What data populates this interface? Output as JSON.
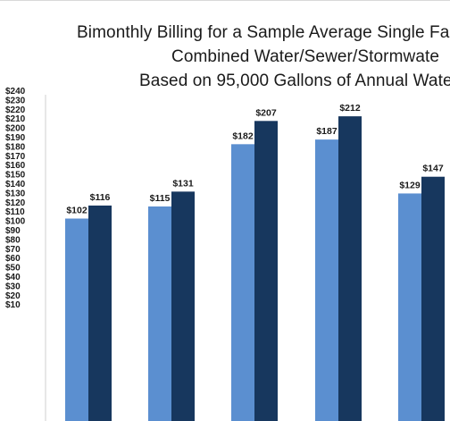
{
  "chart_data": {
    "type": "bar",
    "title_lines": [
      "Bimonthly Billing for a Sample Average Single Far",
      "Combined Water/Sewer/Stormwate",
      "Based on 95,000 Gallons of Annual Wate"
    ],
    "xlabel": "",
    "ylabel": "",
    "ylim": [
      0,
      240
    ],
    "ytick_step": 10,
    "yticks": [
      "$10",
      "$20",
      "$30",
      "$40",
      "$50",
      "$60",
      "$70",
      "$80",
      "$90",
      "$100",
      "$110",
      "$120",
      "$130",
      "$140",
      "$150",
      "$160",
      "$170",
      "$180",
      "$190",
      "$200",
      "$210",
      "$220",
      "$230",
      "$240"
    ],
    "grid": false,
    "series": [
      {
        "values": [
          102,
          115,
          182,
          187,
          129
        ],
        "labels": [
          "$102",
          "$115",
          "$182",
          "$187",
          "$129"
        ],
        "color": "#5b8fd0"
      },
      {
        "values": [
          116,
          131,
          207,
          212,
          147
        ],
        "labels": [
          "$116",
          "$131",
          "$207",
          "$212",
          "$147"
        ],
        "color": "#17375e"
      }
    ]
  }
}
